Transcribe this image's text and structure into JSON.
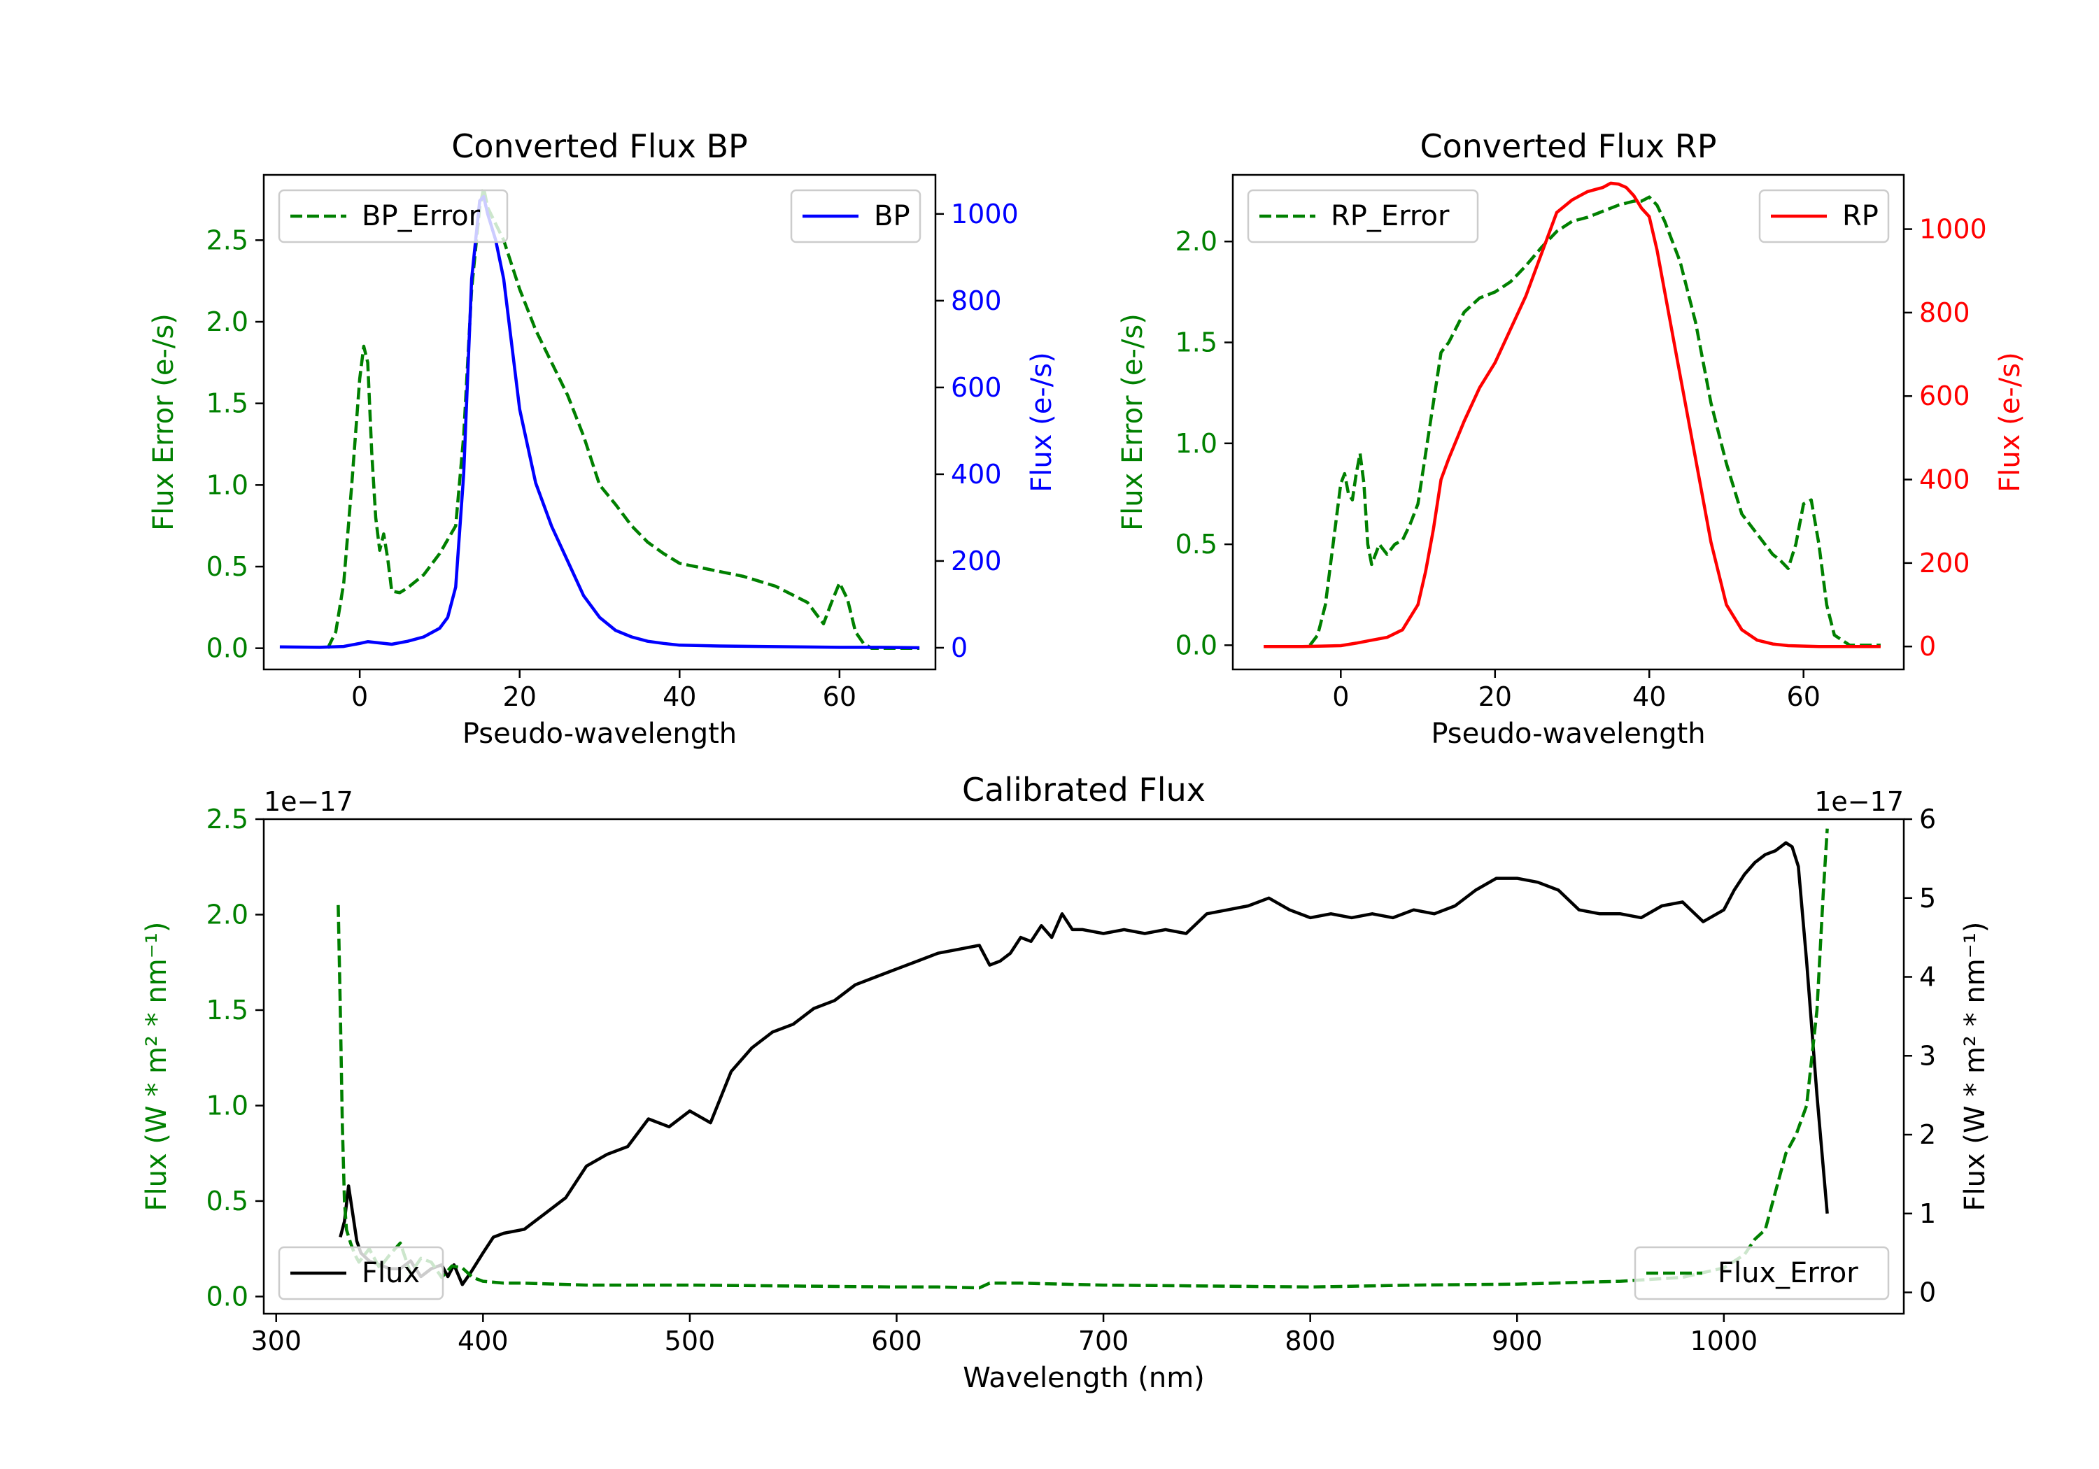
{
  "colors": {
    "error": "#008000",
    "bp": "#0000ff",
    "rp": "#ff0000",
    "flux": "#000000",
    "axis": "#000000"
  },
  "chart_data": [
    {
      "id": "bp",
      "type": "line",
      "title": "Converted Flux BP",
      "xlabel": "Pseudo-wavelength",
      "ylabel_left": "Flux Error (e-/s)",
      "ylabel_right": "Flux (e-/s)",
      "xlim": [
        -12,
        72
      ],
      "ylim_left": [
        -0.13,
        2.9
      ],
      "ylim_right": [
        -50,
        1090
      ],
      "xticks": [
        0,
        20,
        40,
        60
      ],
      "yticks_left": [
        "0.0",
        "0.5",
        "1.0",
        "1.5",
        "2.0",
        "2.5"
      ],
      "yticks_right": [
        "0",
        "200",
        "400",
        "600",
        "800",
        "1000"
      ],
      "legend_left": "BP_Error",
      "legend_right": "BP",
      "series": [
        {
          "name": "BP_Error",
          "axis": "left",
          "style": "dashed",
          "color_key": "error",
          "x": [
            -4,
            -3,
            -2,
            -1,
            0,
            0.5,
            1,
            1.5,
            2,
            2.5,
            3,
            3.5,
            4,
            5,
            6,
            8,
            10,
            12,
            13,
            14,
            15,
            15.5,
            16,
            17,
            18,
            20,
            22,
            24,
            26,
            28,
            30,
            32,
            34,
            36,
            38,
            40,
            44,
            48,
            52,
            56,
            58,
            59,
            60,
            61,
            62,
            63,
            64,
            66,
            68,
            70
          ],
          "y": [
            0.0,
            0.1,
            0.4,
            1.0,
            1.65,
            1.85,
            1.75,
            1.2,
            0.8,
            0.6,
            0.7,
            0.55,
            0.35,
            0.34,
            0.37,
            0.45,
            0.58,
            0.75,
            1.3,
            2.2,
            2.7,
            2.82,
            2.7,
            2.6,
            2.5,
            2.2,
            1.95,
            1.75,
            1.55,
            1.3,
            1.0,
            0.88,
            0.75,
            0.65,
            0.58,
            0.52,
            0.48,
            0.44,
            0.38,
            0.28,
            0.15,
            0.28,
            0.4,
            0.3,
            0.1,
            0.03,
            0.0,
            0.0,
            0.0,
            0.0
          ]
        },
        {
          "name": "BP",
          "axis": "right",
          "style": "solid",
          "color_key": "bp",
          "x": [
            -10,
            -5,
            -2,
            0,
            1,
            2,
            4,
            6,
            8,
            10,
            11,
            12,
            13,
            14,
            15,
            15.5,
            16,
            17,
            18,
            20,
            22,
            24,
            26,
            28,
            30,
            32,
            34,
            36,
            38,
            40,
            45,
            50,
            55,
            60,
            65,
            70
          ],
          "y": [
            2,
            1,
            3,
            10,
            14,
            12,
            8,
            15,
            25,
            45,
            70,
            140,
            400,
            850,
            1030,
            1040,
            1000,
            940,
            850,
            550,
            380,
            280,
            200,
            120,
            70,
            40,
            25,
            15,
            10,
            6,
            4,
            3,
            2,
            1,
            1,
            0
          ]
        }
      ]
    },
    {
      "id": "rp",
      "type": "line",
      "title": "Converted Flux RP",
      "xlabel": "Pseudo-wavelength",
      "ylabel_left": "Flux Error (e-/s)",
      "ylabel_right": "Flux (e-/s)",
      "xlim": [
        -14,
        73
      ],
      "ylim_left": [
        -0.12,
        2.33
      ],
      "ylim_right": [
        -55,
        1130
      ],
      "xticks": [
        0,
        20,
        40,
        60
      ],
      "yticks_left": [
        "0.0",
        "0.5",
        "1.0",
        "1.5",
        "2.0"
      ],
      "yticks_right": [
        "0",
        "200",
        "400",
        "600",
        "800",
        "1000"
      ],
      "legend_left": "RP_Error",
      "legend_right": "RP",
      "series": [
        {
          "name": "RP_Error",
          "axis": "left",
          "style": "dashed",
          "color_key": "error",
          "x": [
            -4,
            -3,
            -2,
            -1,
            0,
            0.5,
            1,
            1.5,
            2,
            2.5,
            3,
            3.5,
            4,
            5,
            6,
            7,
            8,
            9,
            10,
            11,
            12,
            13,
            14,
            16,
            18,
            20,
            22,
            24,
            26,
            28,
            30,
            32,
            34,
            36,
            38,
            39,
            40,
            41,
            42,
            44,
            46,
            48,
            50,
            52,
            54,
            55,
            56,
            57,
            58,
            59,
            60,
            61,
            62,
            63,
            64,
            66,
            68,
            70
          ],
          "y": [
            0.0,
            0.05,
            0.2,
            0.5,
            0.8,
            0.85,
            0.75,
            0.72,
            0.85,
            0.95,
            0.8,
            0.5,
            0.4,
            0.5,
            0.45,
            0.5,
            0.52,
            0.6,
            0.7,
            0.95,
            1.2,
            1.45,
            1.5,
            1.65,
            1.72,
            1.75,
            1.8,
            1.88,
            1.97,
            2.05,
            2.1,
            2.12,
            2.15,
            2.18,
            2.2,
            2.2,
            2.22,
            2.18,
            2.1,
            1.9,
            1.6,
            1.2,
            0.9,
            0.65,
            0.55,
            0.5,
            0.45,
            0.42,
            0.38,
            0.5,
            0.7,
            0.72,
            0.5,
            0.2,
            0.05,
            0.0,
            0.0,
            0.0
          ]
        },
        {
          "name": "RP",
          "axis": "right",
          "style": "solid",
          "color_key": "rp",
          "x": [
            -10,
            -5,
            0,
            2,
            4,
            6,
            8,
            10,
            11,
            12,
            13,
            14,
            16,
            18,
            20,
            22,
            24,
            26,
            28,
            30,
            31,
            32,
            34,
            35,
            36,
            37,
            38,
            39,
            40,
            41,
            42,
            44,
            46,
            48,
            50,
            52,
            54,
            56,
            58,
            60,
            62,
            65,
            70
          ],
          "y": [
            0,
            0,
            2,
            8,
            15,
            22,
            40,
            100,
            180,
            280,
            400,
            450,
            540,
            620,
            680,
            760,
            840,
            940,
            1040,
            1070,
            1080,
            1090,
            1100,
            1110,
            1108,
            1100,
            1080,
            1050,
            1030,
            950,
            850,
            650,
            450,
            250,
            100,
            40,
            15,
            6,
            2,
            1,
            0,
            0,
            0
          ]
        }
      ]
    },
    {
      "id": "cal",
      "type": "line",
      "title": "Calibrated Flux",
      "xlabel": "Wavelength (nm)",
      "ylabel_left": "Flux (W * m² * nm⁻¹)",
      "ylabel_right": "Flux (W * m² * nm⁻¹)",
      "offset_left": "1e−17",
      "offset_right": "1e−17",
      "xlim": [
        294,
        1087
      ],
      "ylim_left": [
        -0.09,
        2.5
      ],
      "ylim_right": [
        -0.27,
        6.0
      ],
      "xticks": [
        300,
        400,
        500,
        600,
        700,
        800,
        900,
        1000
      ],
      "yticks_left": [
        "0.0",
        "0.5",
        "1.0",
        "1.5",
        "2.0",
        "2.5"
      ],
      "yticks_right": [
        "0",
        "1",
        "2",
        "3",
        "4",
        "5",
        "6"
      ],
      "legend_left": "Flux",
      "legend_right": "Flux_Error",
      "series": [
        {
          "name": "Flux_Error",
          "axis": "left",
          "style": "dashed",
          "color_key": "error",
          "x": [
            330,
            331,
            332,
            333,
            334,
            336,
            338,
            340,
            345,
            350,
            355,
            360,
            365,
            370,
            375,
            380,
            385,
            390,
            395,
            400,
            410,
            420,
            450,
            500,
            550,
            600,
            620,
            640,
            645,
            660,
            700,
            750,
            800,
            850,
            900,
            950,
            980,
            1000,
            1010,
            1015,
            1020,
            1025,
            1030,
            1035,
            1040,
            1045,
            1048,
            1050
          ],
          "y": [
            2.05,
            1.5,
            0.9,
            0.5,
            0.35,
            0.28,
            0.22,
            0.18,
            0.25,
            0.15,
            0.22,
            0.28,
            0.12,
            0.2,
            0.18,
            0.1,
            0.16,
            0.15,
            0.1,
            0.08,
            0.07,
            0.07,
            0.06,
            0.06,
            0.055,
            0.05,
            0.05,
            0.045,
            0.07,
            0.07,
            0.06,
            0.055,
            0.05,
            0.06,
            0.065,
            0.08,
            0.1,
            0.15,
            0.22,
            0.3,
            0.35,
            0.55,
            0.75,
            0.85,
            1.0,
            1.5,
            2.1,
            2.45
          ]
        },
        {
          "name": "Flux",
          "axis": "right",
          "style": "solid",
          "color_key": "flux",
          "x": [
            331,
            333,
            335,
            337,
            339,
            341,
            345,
            350,
            355,
            360,
            365,
            370,
            375,
            380,
            383,
            386,
            390,
            394,
            400,
            405,
            410,
            420,
            430,
            440,
            450,
            460,
            470,
            480,
            490,
            500,
            510,
            520,
            530,
            540,
            550,
            560,
            570,
            580,
            590,
            600,
            610,
            620,
            630,
            640,
            645,
            650,
            655,
            660,
            665,
            670,
            675,
            680,
            685,
            690,
            700,
            710,
            720,
            730,
            740,
            750,
            760,
            770,
            780,
            790,
            800,
            810,
            820,
            830,
            840,
            850,
            860,
            870,
            880,
            890,
            900,
            910,
            920,
            930,
            940,
            950,
            960,
            970,
            980,
            990,
            1000,
            1005,
            1010,
            1015,
            1020,
            1025,
            1030,
            1033,
            1036,
            1040,
            1045,
            1050
          ],
          "y": [
            0.7,
            0.9,
            1.35,
            1.0,
            0.65,
            0.5,
            0.4,
            0.35,
            0.3,
            0.3,
            0.4,
            0.2,
            0.3,
            0.35,
            0.2,
            0.35,
            0.1,
            0.25,
            0.5,
            0.7,
            0.75,
            0.8,
            1.0,
            1.2,
            1.6,
            1.75,
            1.85,
            2.2,
            2.1,
            2.3,
            2.15,
            2.8,
            3.1,
            3.3,
            3.4,
            3.6,
            3.7,
            3.9,
            4.0,
            4.1,
            4.2,
            4.3,
            4.35,
            4.4,
            4.15,
            4.2,
            4.3,
            4.5,
            4.45,
            4.65,
            4.5,
            4.8,
            4.6,
            4.6,
            4.55,
            4.6,
            4.55,
            4.6,
            4.55,
            4.8,
            4.85,
            4.9,
            5.0,
            4.85,
            4.75,
            4.8,
            4.75,
            4.8,
            4.75,
            4.85,
            4.8,
            4.9,
            5.1,
            5.25,
            5.25,
            5.2,
            5.1,
            4.85,
            4.8,
            4.8,
            4.75,
            4.9,
            4.95,
            4.7,
            4.85,
            5.1,
            5.3,
            5.45,
            5.55,
            5.6,
            5.7,
            5.65,
            5.4,
            4.2,
            2.5,
            1.0
          ]
        }
      ]
    }
  ]
}
